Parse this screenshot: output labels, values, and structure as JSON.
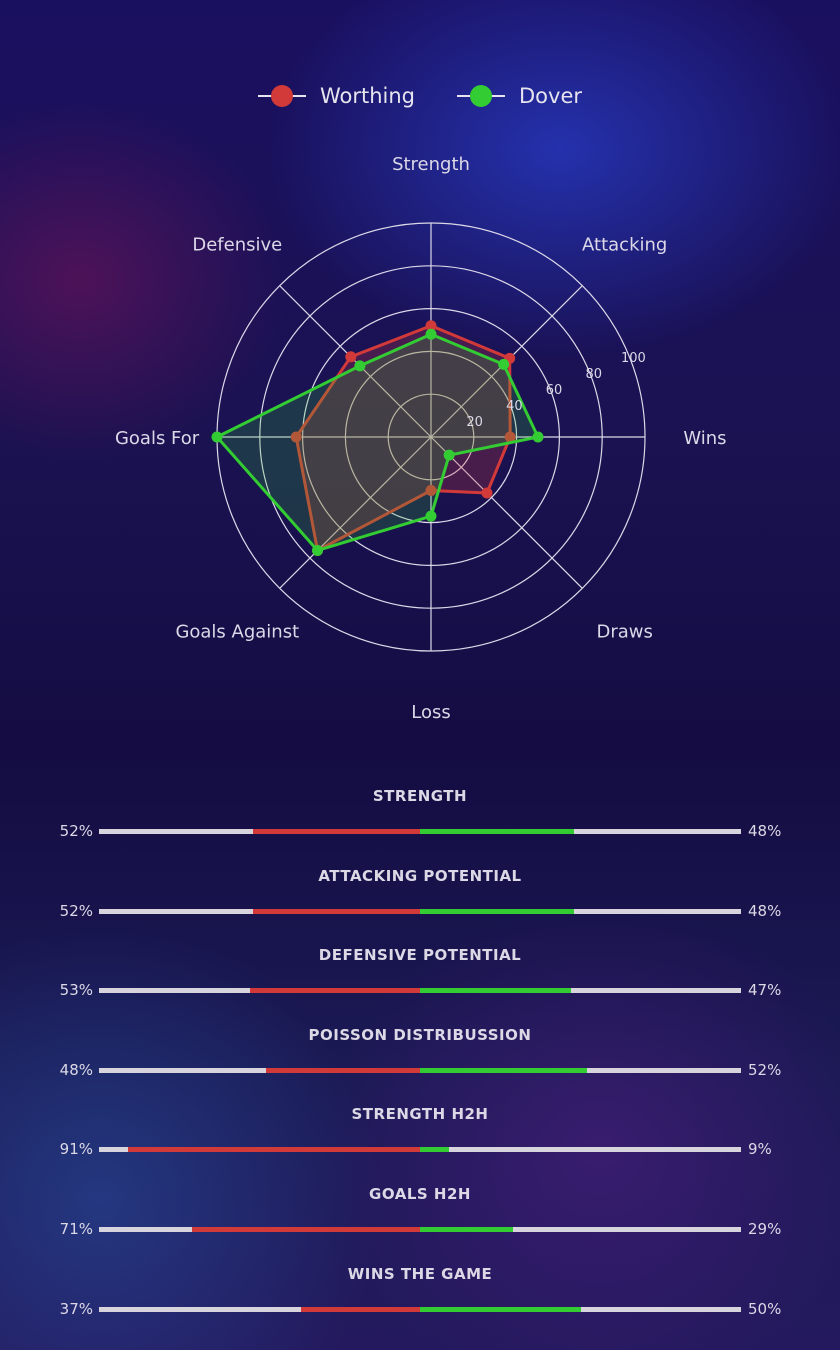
{
  "colors": {
    "home": "#d23a3a",
    "away": "#33cc33",
    "track": "#d8d4de"
  },
  "legend": [
    {
      "name": "Worthing",
      "color": "#d23a3a"
    },
    {
      "name": "Dover",
      "color": "#33cc33"
    }
  ],
  "chart_data": {
    "type": "radar",
    "axes": [
      "Strength",
      "Attacking",
      "Wins",
      "Draws",
      "Loss",
      "Goals Against",
      "Goals For",
      "Defensive"
    ],
    "rlim": [
      0,
      100
    ],
    "rticks": [
      20,
      40,
      60,
      80,
      100
    ],
    "grid": true,
    "legend_position": "top",
    "series": [
      {
        "name": "Worthing",
        "values": [
          52,
          52,
          37,
          37,
          25,
          75,
          63,
          53
        ]
      },
      {
        "name": "Dover",
        "values": [
          48,
          48,
          50,
          12,
          37,
          75,
          100,
          47
        ]
      }
    ]
  },
  "comparisons": [
    {
      "title": "STRENGTH",
      "home": "52%",
      "away": "48%",
      "home_value": 52,
      "away_value": 48
    },
    {
      "title": "ATTACKING POTENTIAL",
      "home": "52%",
      "away": "48%",
      "home_value": 52,
      "away_value": 48
    },
    {
      "title": "DEFENSIVE POTENTIAL",
      "home": "53%",
      "away": "47%",
      "home_value": 53,
      "away_value": 47
    },
    {
      "title": "POISSON DISTRIBUSSION",
      "home": "48%",
      "away": "52%",
      "home_value": 48,
      "away_value": 52
    },
    {
      "title": "STRENGTH H2H",
      "home": "91%",
      "away": "9%",
      "home_value": 91,
      "away_value": 9
    },
    {
      "title": "GOALS H2H",
      "home": "71%",
      "away": "29%",
      "home_value": 71,
      "away_value": 29
    },
    {
      "title": "WINS THE GAME",
      "home": "37%",
      "away": "50%",
      "home_value": 37,
      "away_value": 50
    }
  ]
}
